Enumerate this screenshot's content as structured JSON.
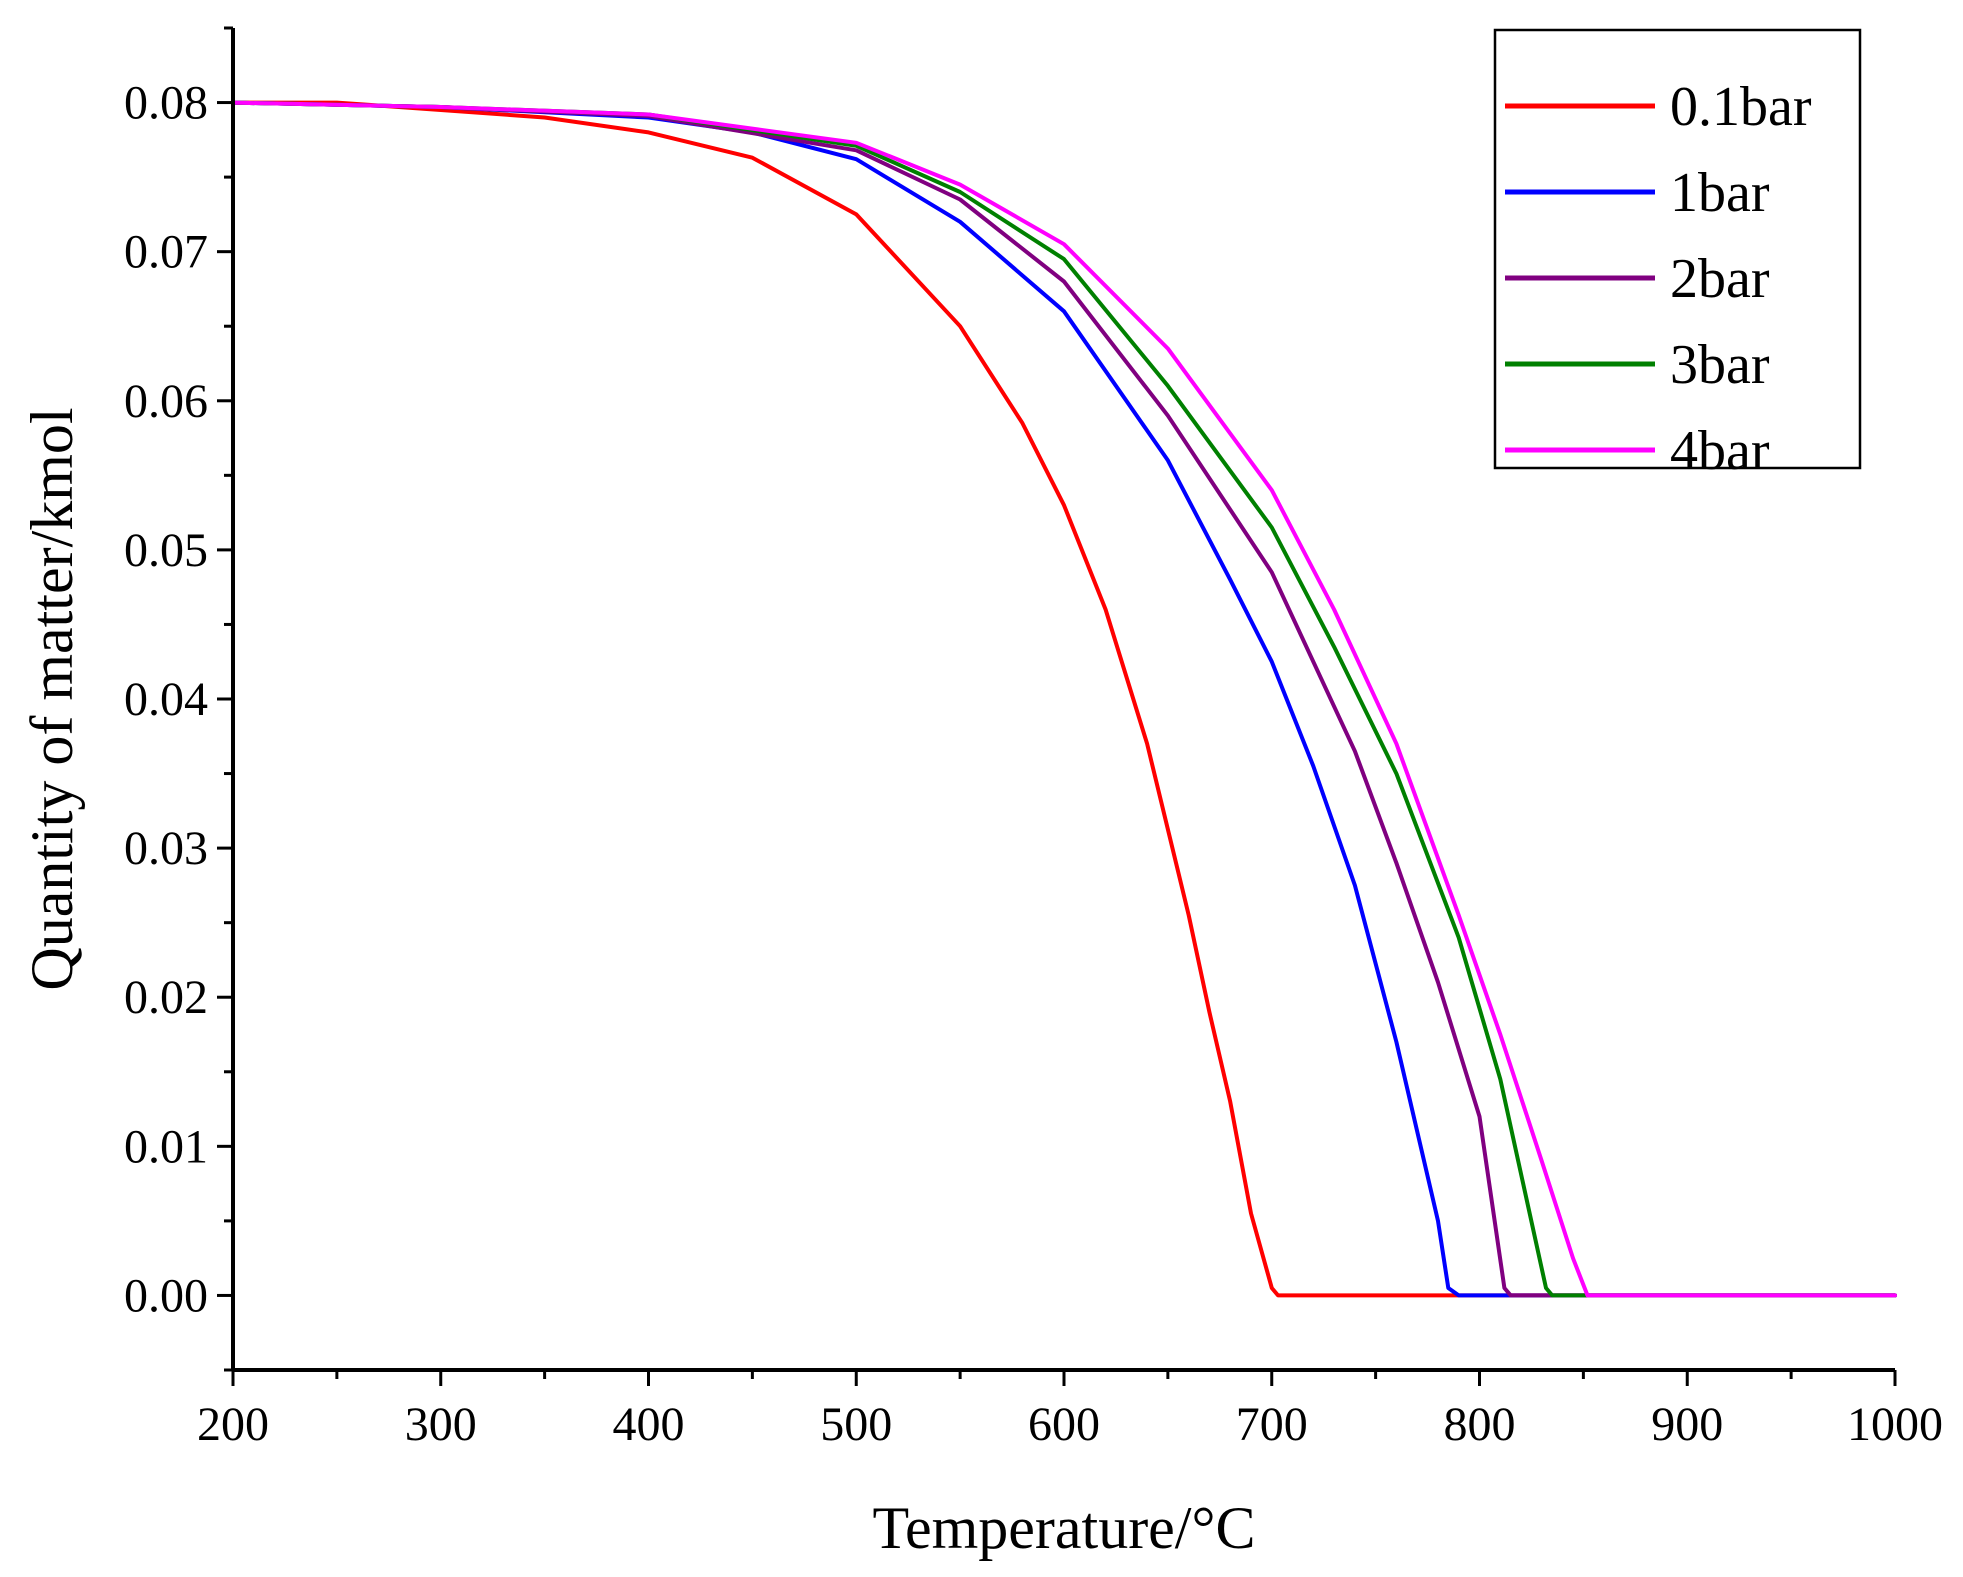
{
  "chart_data": {
    "type": "line",
    "title": "",
    "xlabel": "Temperature/°C",
    "ylabel": "Quantity of matter/kmol",
    "xlim": [
      200,
      1000
    ],
    "ylim": [
      -0.005,
      0.085
    ],
    "xticks": [
      200,
      300,
      400,
      500,
      600,
      700,
      800,
      900,
      1000
    ],
    "xtick_labels": [
      "200",
      "300",
      "400",
      "500",
      "600",
      "700",
      "800",
      "900",
      "1000"
    ],
    "yticks": [
      0.0,
      0.01,
      0.02,
      0.03,
      0.04,
      0.05,
      0.06,
      0.07,
      0.08
    ],
    "ytick_labels": [
      "0.00",
      "0.01",
      "0.02",
      "0.03",
      "0.04",
      "0.05",
      "0.06",
      "0.07",
      "0.08"
    ],
    "grid": false,
    "legend_position": "top-right",
    "series": [
      {
        "name": "0.1bar",
        "color": "#ff0000",
        "x": [
          200,
          250,
          300,
          350,
          400,
          450,
          500,
          550,
          580,
          600,
          620,
          640,
          660,
          670,
          680,
          690,
          700,
          703,
          800,
          1000
        ],
        "y": [
          0.08,
          0.08,
          0.0795,
          0.079,
          0.078,
          0.0763,
          0.0725,
          0.065,
          0.0585,
          0.053,
          0.046,
          0.037,
          0.0255,
          0.019,
          0.013,
          0.0055,
          0.0005,
          0.0,
          0.0,
          0.0
        ]
      },
      {
        "name": "1bar",
        "color": "#0000ff",
        "x": [
          200,
          300,
          400,
          450,
          500,
          550,
          600,
          650,
          680,
          700,
          720,
          740,
          760,
          780,
          785,
          790,
          1000
        ],
        "y": [
          0.08,
          0.0797,
          0.079,
          0.078,
          0.0762,
          0.072,
          0.066,
          0.056,
          0.048,
          0.0425,
          0.0355,
          0.0275,
          0.017,
          0.005,
          0.0005,
          0.0,
          0.0
        ]
      },
      {
        "name": "2bar",
        "color": "#800080",
        "x": [
          200,
          300,
          400,
          500,
          550,
          600,
          650,
          700,
          720,
          740,
          760,
          780,
          800,
          812,
          815,
          1000
        ],
        "y": [
          0.08,
          0.0797,
          0.0791,
          0.0768,
          0.0735,
          0.068,
          0.059,
          0.0485,
          0.0425,
          0.0365,
          0.029,
          0.021,
          0.012,
          0.0005,
          0.0,
          0.0
        ]
      },
      {
        "name": "3bar",
        "color": "#008000",
        "x": [
          200,
          300,
          400,
          500,
          550,
          600,
          650,
          700,
          730,
          760,
          790,
          810,
          832,
          835,
          1000
        ],
        "y": [
          0.08,
          0.0797,
          0.0792,
          0.0771,
          0.074,
          0.0695,
          0.061,
          0.0515,
          0.0435,
          0.035,
          0.024,
          0.0145,
          0.0005,
          0.0,
          0.0
        ]
      },
      {
        "name": "4bar",
        "color": "#ff00ff",
        "x": [
          200,
          300,
          400,
          500,
          550,
          600,
          650,
          700,
          730,
          760,
          790,
          810,
          830,
          845,
          852,
          1000
        ],
        "y": [
          0.08,
          0.0797,
          0.0792,
          0.0773,
          0.0745,
          0.0705,
          0.0635,
          0.054,
          0.046,
          0.037,
          0.0255,
          0.0175,
          0.009,
          0.0025,
          0.0,
          0.0
        ]
      }
    ]
  }
}
